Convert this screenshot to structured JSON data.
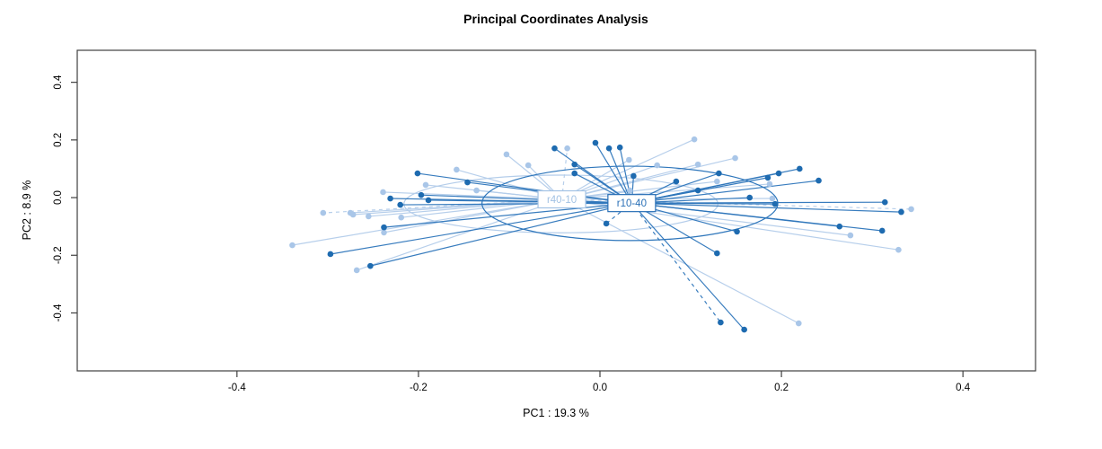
{
  "title": "Principal Coordinates Analysis",
  "axes": {
    "x": {
      "label": "PC1 : 19.3 %",
      "labels": [
        "-0.4",
        "-0.2",
        "0.0",
        "0.2",
        "0.4"
      ],
      "values": [
        -0.4,
        -0.2,
        0.0,
        0.2,
        0.4
      ]
    },
    "y": {
      "label": "PC2 :  8.9 %",
      "labels": [
        "-0.4",
        "-0.2",
        "0.0",
        "0.2",
        "0.4"
      ],
      "values": [
        -0.4,
        -0.2,
        0.0,
        0.2,
        0.4
      ]
    }
  },
  "colors": {
    "frame": "#3f3f3f",
    "background": "#ffffff"
  },
  "chart_data": {
    "type": "scatter",
    "subtype": "pcoa-ordination-spider",
    "title": "Principal Coordinates Analysis",
    "xlabel": "PC1 : 19.3 %",
    "ylabel": "PC2 :  8.9 %",
    "xlim": [
      -0.576,
      0.48
    ],
    "ylim": [
      -0.601,
      0.511
    ],
    "grid": false,
    "legend_position": "none",
    "series": [
      {
        "name": "r40-10",
        "point_color": "#a9c6e8",
        "line_color": "#b4cdea",
        "label_color": "#a2c2e4",
        "centroid": [
          -0.042,
          -0.006
        ],
        "ellipse": {
          "cx": -0.043,
          "cy": -0.022,
          "rx": 0.173,
          "ry": 0.1
        },
        "dashed": [
          1,
          14,
          27
        ],
        "points": [
          [
            -0.339,
            -0.165
          ],
          [
            -0.305,
            -0.053
          ],
          [
            -0.275,
            -0.053
          ],
          [
            -0.272,
            -0.059
          ],
          [
            -0.268,
            -0.252
          ],
          [
            -0.255,
            -0.065
          ],
          [
            -0.239,
            0.019
          ],
          [
            -0.238,
            -0.121
          ],
          [
            -0.219,
            -0.069
          ],
          [
            -0.192,
            0.044
          ],
          [
            -0.158,
            0.097
          ],
          [
            -0.136,
            0.025
          ],
          [
            -0.103,
            0.15
          ],
          [
            -0.079,
            0.112
          ],
          [
            -0.036,
            0.171
          ],
          [
            0.032,
            0.131
          ],
          [
            0.033,
            0.025
          ],
          [
            0.063,
            0.112
          ],
          [
            0.104,
            0.202
          ],
          [
            0.108,
            0.115
          ],
          [
            0.129,
            0.056
          ],
          [
            0.149,
            0.137
          ],
          [
            0.187,
            0.047
          ],
          [
            0.19,
            -0.003
          ],
          [
            0.219,
            -0.436
          ],
          [
            0.276,
            -0.131
          ],
          [
            0.329,
            -0.181
          ],
          [
            0.343,
            -0.04
          ]
        ]
      },
      {
        "name": "r10-40",
        "point_color": "#1e6bb0",
        "line_color": "#2e76bb",
        "label_color": "#2a70b6",
        "centroid": [
          0.035,
          -0.019
        ],
        "ellipse": {
          "cx": 0.033,
          "cy": -0.02,
          "rx": 0.163,
          "ry": 0.129
        },
        "dashed": [
          13,
          21
        ],
        "points": [
          [
            -0.297,
            -0.196
          ],
          [
            -0.253,
            -0.237
          ],
          [
            -0.238,
            -0.103
          ],
          [
            -0.231,
            -0.003
          ],
          [
            -0.22,
            -0.025
          ],
          [
            -0.201,
            0.084
          ],
          [
            -0.197,
            0.009
          ],
          [
            -0.189,
            -0.009
          ],
          [
            -0.146,
            0.053
          ],
          [
            -0.05,
            0.171
          ],
          [
            -0.028,
            0.115
          ],
          [
            -0.028,
            0.084
          ],
          [
            -0.005,
            0.19
          ],
          [
            0.007,
            -0.09
          ],
          [
            0.01,
            0.171
          ],
          [
            0.022,
            0.174
          ],
          [
            0.037,
            0.075
          ],
          [
            0.084,
            0.056
          ],
          [
            0.108,
            0.025
          ],
          [
            0.129,
            -0.193
          ],
          [
            0.131,
            0.084
          ],
          [
            0.133,
            -0.433
          ],
          [
            0.151,
            -0.118
          ],
          [
            0.159,
            -0.458
          ],
          [
            0.165,
            0.0
          ],
          [
            0.185,
            0.069
          ],
          [
            0.193,
            -0.022
          ],
          [
            0.197,
            0.084
          ],
          [
            0.22,
            0.1
          ],
          [
            0.241,
            0.059
          ],
          [
            0.264,
            -0.1
          ],
          [
            0.311,
            -0.115
          ],
          [
            0.314,
            -0.016
          ],
          [
            0.332,
            -0.05
          ]
        ]
      }
    ]
  }
}
